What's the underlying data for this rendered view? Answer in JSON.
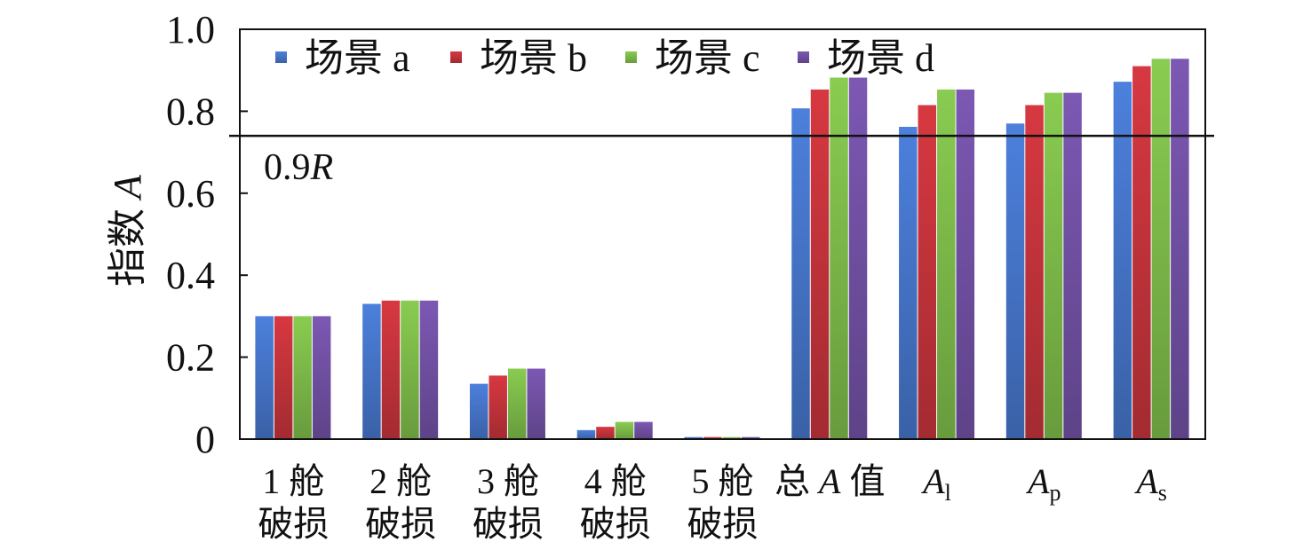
{
  "chart_data": {
    "type": "bar",
    "ylabel": "指数 A",
    "ylabel_prefix": "指数 ",
    "ylabel_var": "A",
    "ylim": [
      0,
      1.0
    ],
    "yticks": [
      "0",
      "0.2",
      "0.4",
      "0.6",
      "0.8",
      "1.0"
    ],
    "ytick_values": [
      0,
      0.2,
      0.4,
      0.6,
      0.8,
      1.0
    ],
    "categories": [
      {
        "line1": "1 舱",
        "line2": "破损"
      },
      {
        "line1": "2 舱",
        "line2": "破损"
      },
      {
        "line1": "3 舱",
        "line2": "破损"
      },
      {
        "line1": "4 舱",
        "line2": "破损"
      },
      {
        "line1": "5 舱",
        "line2": "破损"
      },
      {
        "pre": "总 ",
        "var": "A",
        "post": " 值"
      },
      {
        "var": "A",
        "sub": "l"
      },
      {
        "var": "A",
        "sub": "p"
      },
      {
        "var": "A",
        "sub": "s"
      }
    ],
    "series": [
      {
        "name": "场景 a",
        "color": "#4472C4",
        "values": [
          0.3,
          0.33,
          0.135,
          0.022,
          0.005,
          0.807,
          0.762,
          0.77,
          0.872
        ]
      },
      {
        "name": "场景 b",
        "color": "#C0323A",
        "values": [
          0.3,
          0.338,
          0.155,
          0.03,
          0.005,
          0.853,
          0.815,
          0.815,
          0.91
        ]
      },
      {
        "name": "场景 c",
        "color": "#7AB648",
        "values": [
          0.3,
          0.338,
          0.172,
          0.042,
          0.005,
          0.882,
          0.853,
          0.845,
          0.928
        ]
      },
      {
        "name": "场景 d",
        "color": "#6F4FA0",
        "values": [
          0.3,
          0.338,
          0.172,
          0.042,
          0.005,
          0.882,
          0.853,
          0.845,
          0.928
        ]
      }
    ],
    "reference_line": {
      "value": 0.74,
      "label_num": "0.9",
      "label_var": "R"
    },
    "legend_position": "top-left",
    "grid": false
  }
}
